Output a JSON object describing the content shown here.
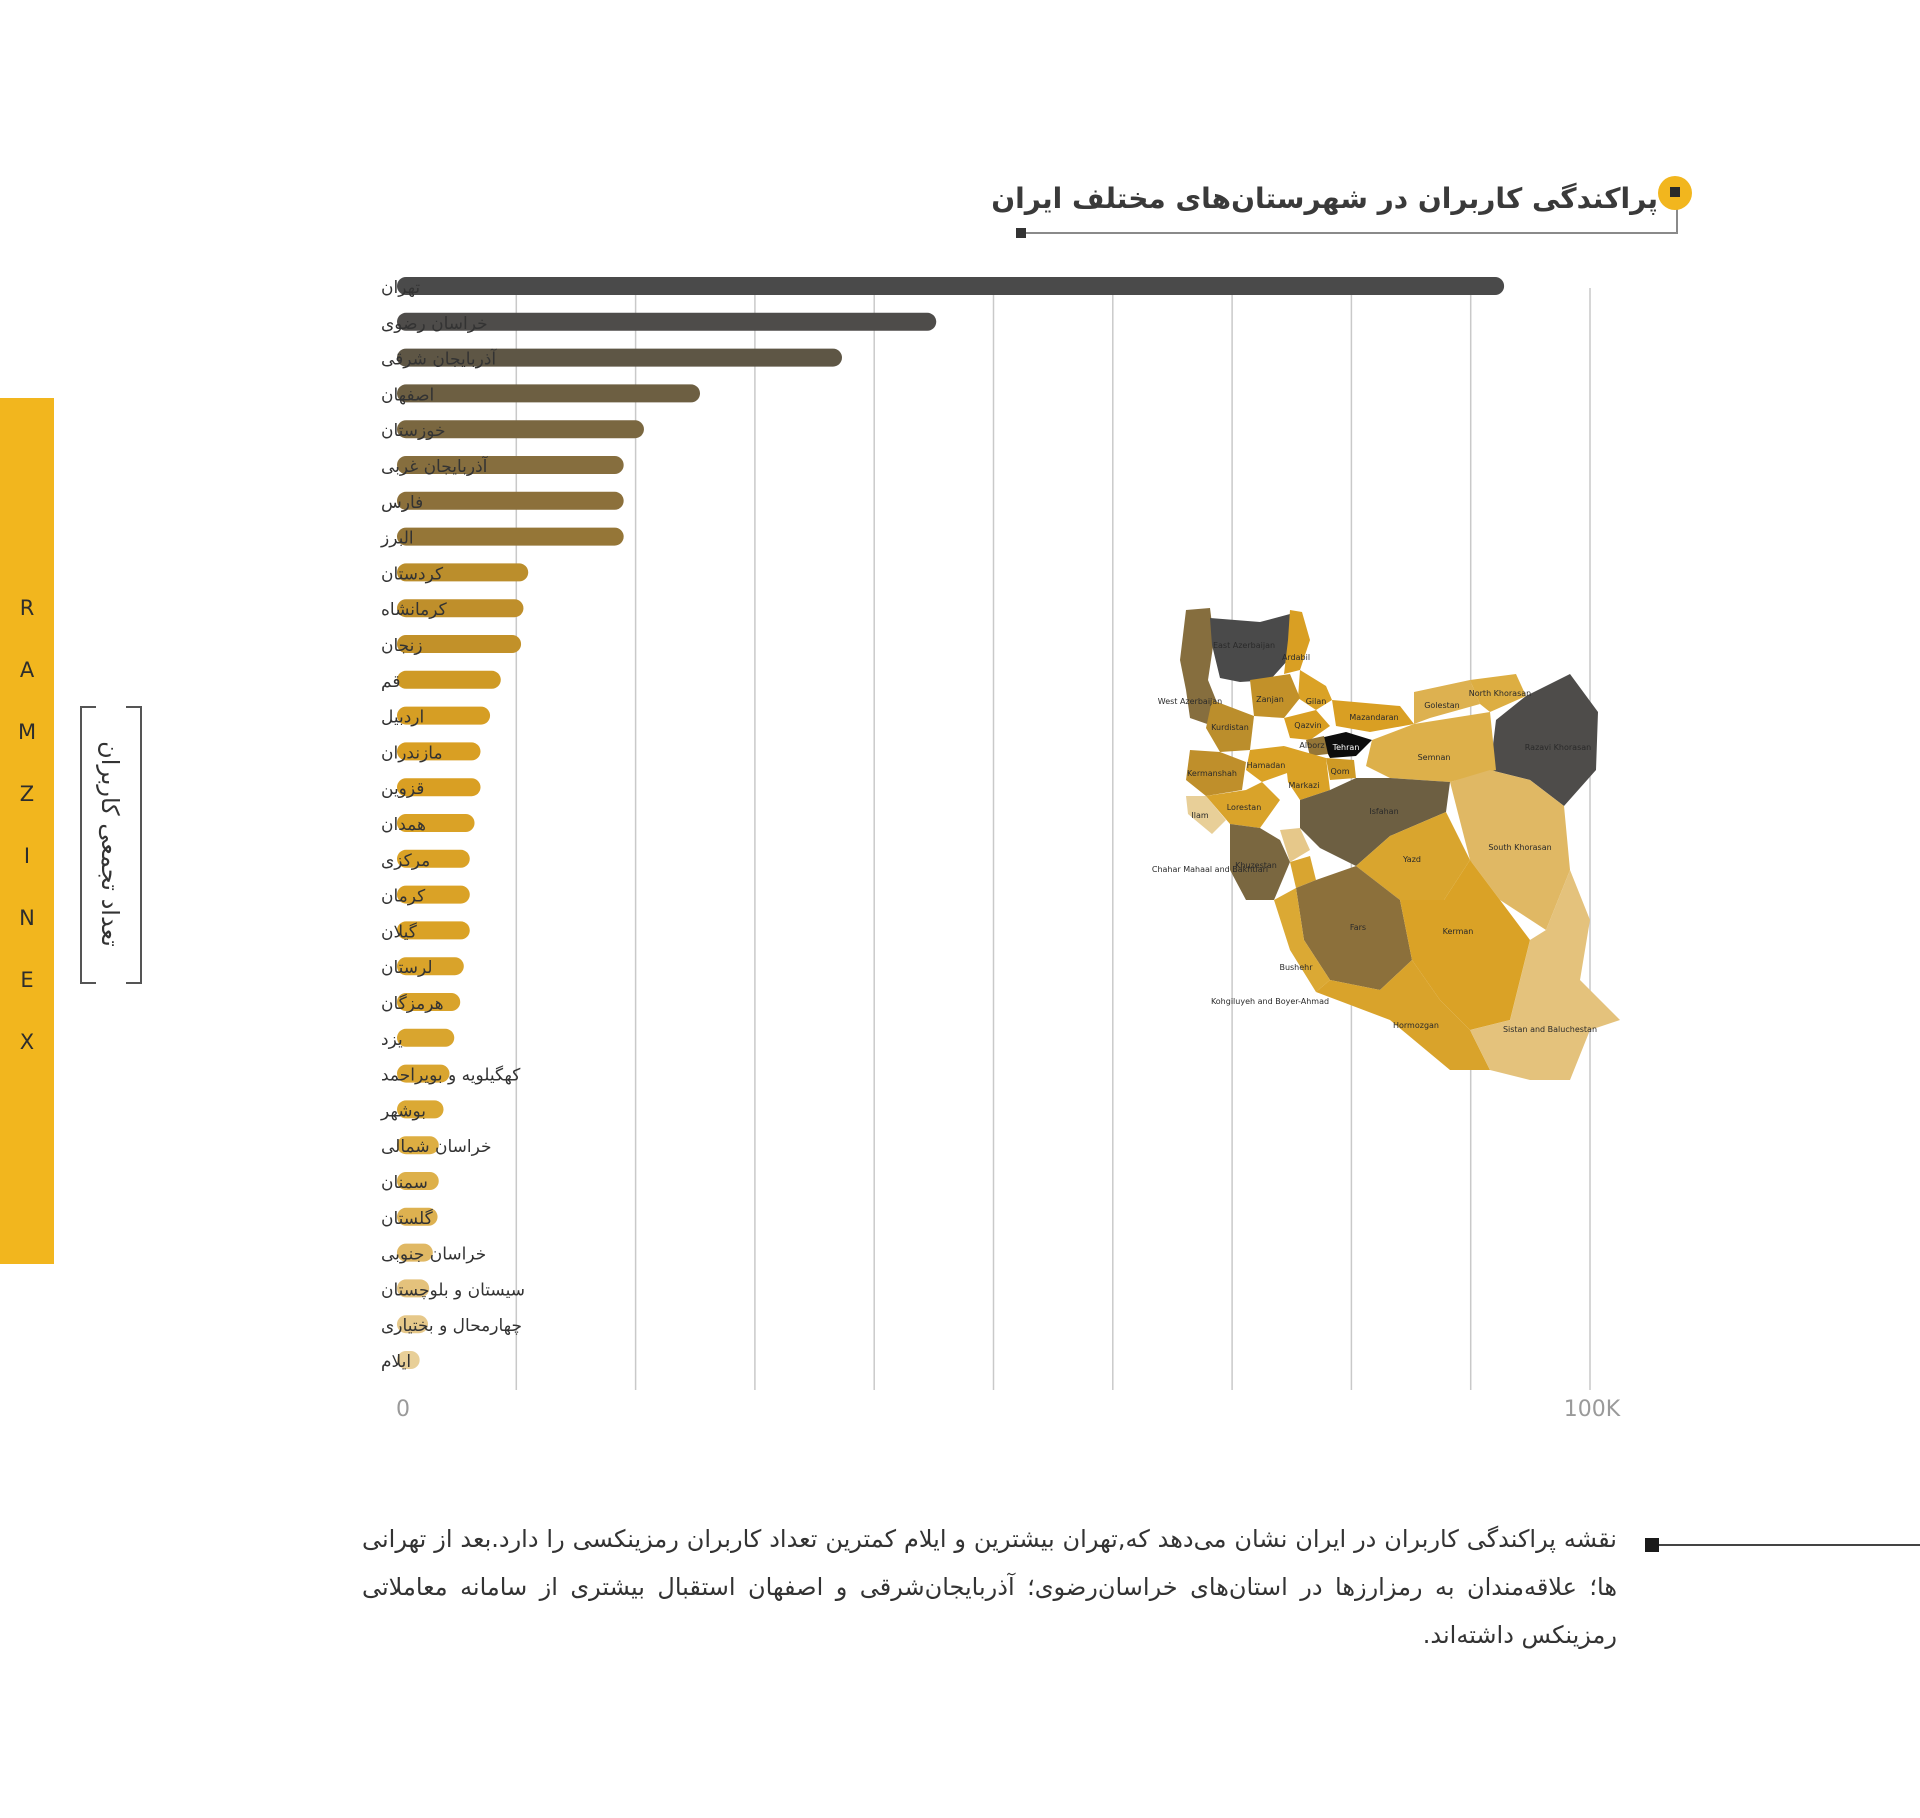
{
  "title": "پراکندگی کاربران در شهرستان‌های مختلف ایران",
  "brand_letters": [
    "R",
    "A",
    "M",
    "Z",
    "I",
    "N",
    "E",
    "X"
  ],
  "chart_data": {
    "type": "bar",
    "orientation": "horizontal",
    "title": "پراکندگی کاربران در شهرستان‌های مختلف ایران",
    "ylabel": "تعداد تجمعی کاربران",
    "xlabel": "",
    "xlim": [
      0,
      100000
    ],
    "x_tick_labels": [
      "0",
      "100K"
    ],
    "gridlines": 10,
    "categories": [
      "تهران",
      "خراسان رضوی",
      "آذربایجان شرقی",
      "اصفهان",
      "خوزستان",
      "آذربایجان غربی",
      "فارس",
      "البرز",
      "کردستان",
      "کرمانشاه",
      "زنجان",
      "قم",
      "اردبیل",
      "مازندران",
      "قزوین",
      "همدان",
      "مرکزی",
      "کرمان",
      "گیلان",
      "لرستان",
      "هرمزگان",
      "یزد",
      "کهگیلویه و بویراحمد",
      "بوشهر",
      "خراسان شمالی",
      "سمنان",
      "گلستان",
      "خراسان جنوبی",
      "سیستان و بلوچستان",
      "چهارمحال و بختیاری",
      "ایلام"
    ],
    "values": [
      92800,
      45200,
      37300,
      25400,
      20700,
      19000,
      19000,
      19000,
      11000,
      10600,
      10400,
      8700,
      7800,
      7000,
      7000,
      6500,
      6100,
      6100,
      6100,
      5600,
      5300,
      4800,
      4400,
      3900,
      3500,
      3500,
      3400,
      3000,
      2700,
      2600,
      1900
    ],
    "colors": [
      "#4a4a4a",
      "#4e4c4a",
      "#5e5645",
      "#6d5f42",
      "#7a6740",
      "#866e3e",
      "#8c703b",
      "#957637",
      "#bb8e2c",
      "#bf8f2b",
      "#c29129",
      "#cf9a25",
      "#d69e24",
      "#d99f23",
      "#d99f23",
      "#daa226",
      "#daa226",
      "#daa226",
      "#daa226",
      "#d9a32a",
      "#d9a32b",
      "#d9a52e",
      "#d9a530",
      "#dba934",
      "#ddae42",
      "#ddb04a",
      "#ddb150",
      "#e0b864",
      "#e4c27c",
      "#e6c88a",
      "#e8cf98"
    ]
  },
  "map": {
    "labels": [
      "Ardabil",
      "Gilan",
      "Zanjan",
      "Qazvin",
      "Mazandaran",
      "Golestan",
      "North Khorasan",
      "Kurdistan",
      "Tehran",
      "Semnan",
      "Razavi Khorasan",
      "Kermanshah",
      "Hamadan",
      "Qom",
      "Markazi",
      "Ilam",
      "Lorestan",
      "Isfahan",
      "Chahar Mahaal and Bakhtiari",
      "Khuzestan",
      "Yazd",
      "South Khorasan",
      "Kohgiluyeh and Boyer-Ahmad",
      "Fars",
      "Kerman",
      "Bushehr",
      "Hormozgan",
      "Sistan and Baluchestan",
      "West Azerbaijan",
      "East Azerbaijan",
      "Alborz"
    ]
  },
  "note": "نقشه پراکندگی کاربران در ایران نشان می‌دهد که,تهران بیشترین و ایلام کمترین تعداد کاربران رمزینکسی را دارد.بعد از تهرانی ها؛ علاقه‌مندان به رمزارزها در استان‌های خراسان‌رضوی؛ آذربایجان‌شرقی و اصفهان استقبال بیشتری از سامانه معاملاتی رمزینکس داشته‌اند."
}
